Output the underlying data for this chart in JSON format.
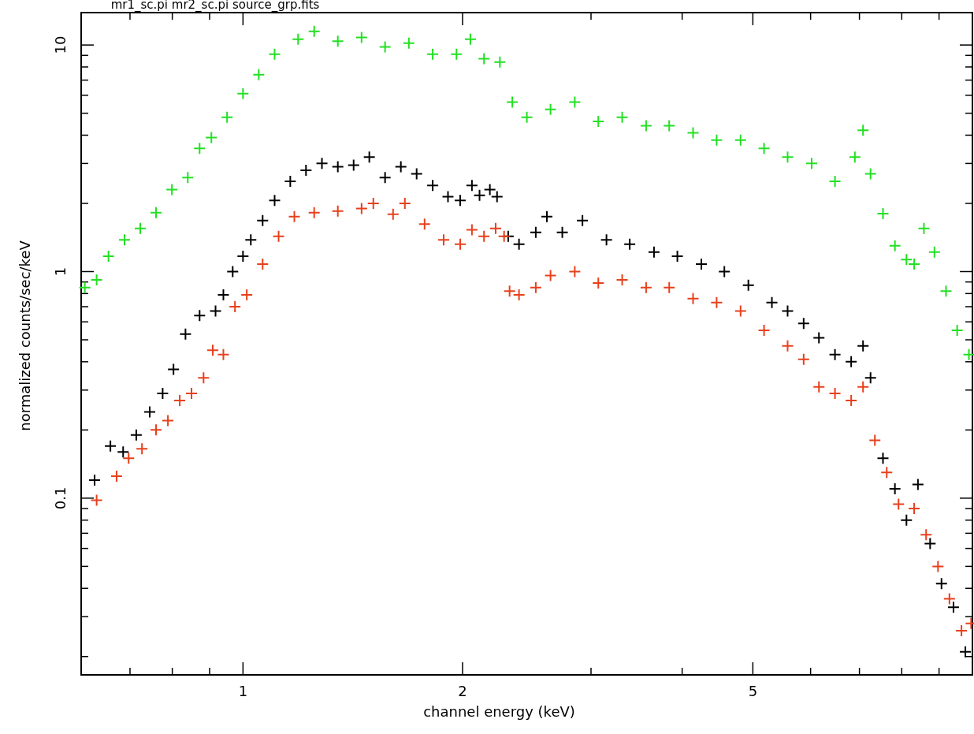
{
  "chart_data": {
    "type": "scatter",
    "title": "mr1_sc.pi mr2_sc.pi source_grp.fits",
    "xlabel": "channel energy (keV)",
    "ylabel": "normalized counts/sec/keV",
    "log": "xy",
    "grid": false,
    "marker": "cross",
    "xlim": [
      0.6,
      10
    ],
    "ylim": [
      0.0166,
      13.9
    ],
    "xticks": [
      {
        "value": 0.7,
        "label": null
      },
      {
        "value": 0.8,
        "label": null
      },
      {
        "value": 0.9,
        "label": null
      },
      1,
      2,
      {
        "value": 3,
        "label": null
      },
      {
        "value": 4,
        "label": null
      },
      5,
      {
        "value": 6,
        "label": null
      },
      {
        "value": 7,
        "label": null
      },
      {
        "value": 8,
        "label": null
      },
      {
        "value": 9,
        "label": null
      }
    ],
    "yticks": [
      {
        "value": 0.02,
        "label": null
      },
      {
        "value": 0.03,
        "label": null
      },
      {
        "value": 0.04,
        "label": null
      },
      {
        "value": 0.05,
        "label": null
      },
      {
        "value": 0.06,
        "label": null
      },
      {
        "value": 0.07,
        "label": null
      },
      {
        "value": 0.08,
        "label": null
      },
      {
        "value": 0.09,
        "label": null
      },
      0.1,
      {
        "value": 0.2,
        "label": null
      },
      {
        "value": 0.3,
        "label": null
      },
      {
        "value": 0.4,
        "label": null
      },
      {
        "value": 0.5,
        "label": null
      },
      {
        "value": 0.6,
        "label": null
      },
      {
        "value": 0.7,
        "label": null
      },
      {
        "value": 0.8,
        "label": null
      },
      {
        "value": 0.9,
        "label": null
      },
      1,
      {
        "value": 2,
        "label": null
      },
      {
        "value": 3,
        "label": null
      },
      {
        "value": 4,
        "label": null
      },
      {
        "value": 5,
        "label": null
      },
      {
        "value": 6,
        "label": null
      },
      {
        "value": 7,
        "label": null
      },
      {
        "value": 8,
        "label": null
      },
      {
        "value": 9,
        "label": null
      },
      10
    ],
    "series": [
      {
        "color": "#22e022",
        "x": [
          0.607,
          0.63,
          0.654,
          0.688,
          0.723,
          0.76,
          0.799,
          0.84,
          0.872,
          0.905,
          0.951,
          1.0,
          1.051,
          1.105,
          1.19,
          1.252,
          1.349,
          1.454,
          1.566,
          1.688,
          1.82,
          1.962,
          2.05,
          2.14,
          2.25,
          2.34,
          2.45,
          2.64,
          2.85,
          3.07,
          3.31,
          3.57,
          3.84,
          4.14,
          4.46,
          4.81,
          5.18,
          5.58,
          6.02,
          6.48,
          6.9,
          7.08,
          7.25,
          7.54,
          7.83,
          8.12,
          8.32,
          8.58,
          8.87,
          9.2,
          9.53,
          9.89
        ],
        "values": [
          0.85,
          0.92,
          1.17,
          1.38,
          1.55,
          1.82,
          2.3,
          2.6,
          3.5,
          3.9,
          4.8,
          6.1,
          7.4,
          9.1,
          10.6,
          11.5,
          10.4,
          10.8,
          9.8,
          10.2,
          9.1,
          9.1,
          10.6,
          8.7,
          8.4,
          5.6,
          4.8,
          5.2,
          5.6,
          4.6,
          4.8,
          4.4,
          4.4,
          4.1,
          3.8,
          3.8,
          3.5,
          3.2,
          3.0,
          2.5,
          3.2,
          4.2,
          2.7,
          1.8,
          1.3,
          1.13,
          1.08,
          1.55,
          1.22,
          0.82,
          0.55,
          0.43
        ]
      },
      {
        "color": "#000000",
        "x": [
          0.626,
          0.658,
          0.685,
          0.714,
          0.745,
          0.776,
          0.803,
          0.834,
          0.872,
          0.917,
          0.94,
          0.968,
          1.0,
          1.025,
          1.064,
          1.105,
          1.161,
          1.22,
          1.283,
          1.349,
          1.418,
          1.49,
          1.566,
          1.646,
          1.73,
          1.82,
          1.91,
          1.985,
          2.06,
          2.11,
          2.18,
          2.23,
          2.31,
          2.39,
          2.52,
          2.61,
          2.74,
          2.92,
          3.15,
          3.39,
          3.66,
          3.94,
          4.25,
          4.57,
          4.93,
          5.31,
          5.58,
          5.87,
          6.16,
          6.48,
          6.82,
          7.08,
          7.25,
          7.54,
          7.83,
          8.12,
          8.42,
          8.75,
          9.07,
          9.42,
          9.78
        ],
        "values": [
          0.12,
          0.17,
          0.16,
          0.19,
          0.24,
          0.29,
          0.37,
          0.53,
          0.64,
          0.67,
          0.79,
          1.0,
          1.17,
          1.38,
          1.68,
          2.06,
          2.5,
          2.8,
          3.0,
          2.9,
          2.95,
          3.2,
          2.6,
          2.9,
          2.7,
          2.4,
          2.14,
          2.06,
          2.4,
          2.17,
          2.3,
          2.14,
          1.43,
          1.32,
          1.49,
          1.75,
          1.49,
          1.68,
          1.38,
          1.32,
          1.22,
          1.17,
          1.08,
          1.0,
          0.87,
          0.73,
          0.67,
          0.59,
          0.51,
          0.43,
          0.4,
          0.47,
          0.34,
          0.15,
          0.11,
          0.08,
          0.115,
          0.063,
          0.042,
          0.033,
          0.021
        ]
      },
      {
        "color": "#e8401c",
        "x": [
          0.63,
          0.671,
          0.697,
          0.727,
          0.76,
          0.789,
          0.819,
          0.85,
          0.883,
          0.909,
          0.94,
          0.975,
          1.012,
          1.064,
          1.119,
          1.176,
          1.252,
          1.349,
          1.454,
          1.509,
          1.606,
          1.667,
          1.774,
          1.884,
          1.985,
          2.06,
          2.14,
          2.22,
          2.28,
          2.32,
          2.39,
          2.52,
          2.64,
          2.85,
          3.07,
          3.31,
          3.57,
          3.84,
          4.14,
          4.46,
          4.81,
          5.18,
          5.58,
          5.87,
          6.16,
          6.48,
          6.82,
          7.08,
          7.35,
          7.63,
          7.92,
          8.32,
          8.64,
          8.97,
          9.3,
          9.66,
          9.96
        ],
        "values": [
          0.098,
          0.125,
          0.15,
          0.165,
          0.2,
          0.22,
          0.27,
          0.29,
          0.34,
          0.45,
          0.43,
          0.7,
          0.79,
          1.08,
          1.43,
          1.75,
          1.82,
          1.85,
          1.9,
          2.0,
          1.79,
          2.0,
          1.62,
          1.38,
          1.32,
          1.53,
          1.43,
          1.55,
          1.43,
          0.82,
          0.79,
          0.85,
          0.96,
          1.0,
          0.89,
          0.92,
          0.85,
          0.85,
          0.76,
          0.73,
          0.67,
          0.55,
          0.47,
          0.41,
          0.31,
          0.29,
          0.27,
          0.31,
          0.18,
          0.13,
          0.094,
          0.09,
          0.069,
          0.05,
          0.036,
          0.026,
          0.028
        ]
      }
    ]
  }
}
